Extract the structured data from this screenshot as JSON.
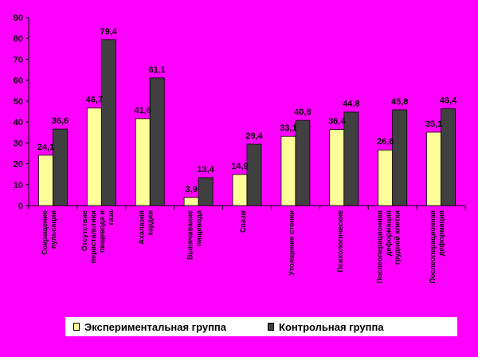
{
  "chart_data": {
    "type": "bar",
    "categories": [
      [
        "Сокращение",
        "пульсации"
      ],
      [
        "Отсутствие",
        "перистальтики",
        "пищевода и",
        "газа"
      ],
      [
        "Ахалазия",
        "кардии"
      ],
      [
        "Выпячивание",
        "пищевода"
      ],
      [
        "Спазм"
      ],
      [
        "Утолщение стенки"
      ],
      [
        "Психологические"
      ],
      [
        "Послеоперационная",
        "деформация",
        "грудной клетки"
      ],
      [
        "Послеоперационная",
        "деформация"
      ]
    ],
    "series": [
      {
        "name": "Экспериментальная группа",
        "values": [
          24.1,
          46.7,
          41.6,
          3.9,
          14.9,
          33.1,
          36.4,
          26.6,
          35.1
        ],
        "labels": [
          "24,1",
          "46,7",
          "41,6",
          "3,9",
          "14,9",
          "33,1",
          "36,4",
          "26,6",
          "35,1"
        ],
        "color": "#ffff99"
      },
      {
        "name": "Контрольная группа",
        "values": [
          36.6,
          79.4,
          61.1,
          13.4,
          29.4,
          40.8,
          44.8,
          45.8,
          46.4
        ],
        "labels": [
          "36,6",
          "79,4",
          "61,1",
          "13,4",
          "29,4",
          "40,8",
          "44,8",
          "45,8",
          "46,4"
        ],
        "color": "#404040"
      }
    ],
    "yticks": [
      "0",
      "10",
      "20",
      "30",
      "40",
      "50",
      "60",
      "70",
      "80",
      "90"
    ],
    "ylim": [
      0,
      90
    ],
    "grid": false,
    "legend_position": "bottom",
    "background": "#ff00ff"
  },
  "legend": {
    "series1": "Экспериментальная группа",
    "series2": "Контрольная группа"
  }
}
